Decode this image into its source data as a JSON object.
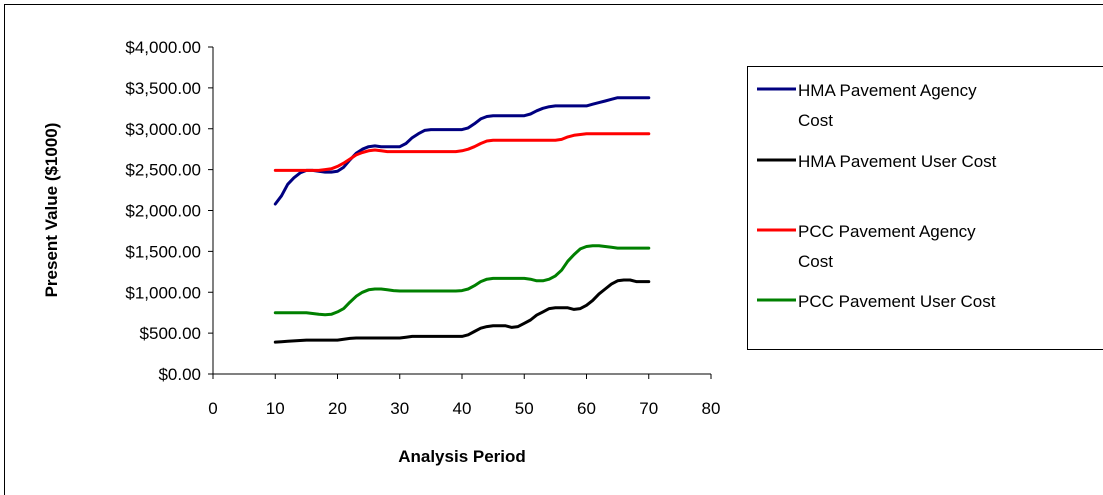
{
  "chart_data": {
    "type": "line",
    "title": "",
    "xlabel": "Analysis Period",
    "ylabel": "Present Value ($1000)",
    "xlim": [
      0,
      80
    ],
    "ylim": [
      0,
      4000
    ],
    "x_ticks": [
      "0",
      "10",
      "20",
      "30",
      "40",
      "50",
      "60",
      "70",
      "80"
    ],
    "y_ticks": [
      "$0.00",
      "$500.00",
      "$1,000.00",
      "$1,500.00",
      "$2,000.00",
      "$2,500.00",
      "$3,000.00",
      "$3,500.00",
      "$4,000.00"
    ],
    "grid": false,
    "legend_position": "right",
    "series": [
      {
        "name": "HMA Pavement Agency Cost",
        "legend_lines": [
          "HMA Pavement Agency",
          "Cost"
        ],
        "color": "#000080",
        "x": [
          10,
          11,
          12,
          13,
          14,
          15,
          16,
          17,
          18,
          19,
          20,
          21,
          22,
          23,
          24,
          25,
          26,
          27,
          28,
          29,
          30,
          31,
          32,
          33,
          34,
          35,
          36,
          37,
          38,
          39,
          40,
          41,
          42,
          43,
          44,
          45,
          46,
          47,
          48,
          49,
          50,
          51,
          52,
          53,
          54,
          55,
          56,
          57,
          58,
          59,
          60,
          61,
          62,
          63,
          64,
          65,
          66,
          67,
          68,
          69,
          70
        ],
        "values": [
          2080,
          2180,
          2320,
          2400,
          2460,
          2490,
          2490,
          2480,
          2470,
          2470,
          2480,
          2530,
          2620,
          2700,
          2750,
          2780,
          2790,
          2780,
          2780,
          2780,
          2780,
          2820,
          2890,
          2940,
          2980,
          2990,
          2990,
          2990,
          2990,
          2990,
          2990,
          3010,
          3060,
          3120,
          3150,
          3160,
          3160,
          3160,
          3160,
          3160,
          3160,
          3180,
          3220,
          3250,
          3270,
          3280,
          3280,
          3280,
          3280,
          3280,
          3280,
          3300,
          3320,
          3340,
          3360,
          3380,
          3380,
          3380,
          3380,
          3380,
          3380
        ]
      },
      {
        "name": "HMA Pavement User Cost",
        "legend_lines": [
          "HMA Pavement User Cost"
        ],
        "color": "#000000",
        "x": [
          10,
          11,
          12,
          13,
          14,
          15,
          16,
          17,
          18,
          19,
          20,
          21,
          22,
          23,
          24,
          25,
          26,
          27,
          28,
          29,
          30,
          31,
          32,
          33,
          34,
          35,
          36,
          37,
          38,
          39,
          40,
          41,
          42,
          43,
          44,
          45,
          46,
          47,
          48,
          49,
          50,
          51,
          52,
          53,
          54,
          55,
          56,
          57,
          58,
          59,
          60,
          61,
          62,
          63,
          64,
          65,
          66,
          67,
          68,
          69,
          70
        ],
        "values": [
          390,
          395,
          400,
          405,
          410,
          415,
          415,
          415,
          415,
          415,
          415,
          425,
          435,
          440,
          440,
          440,
          440,
          440,
          440,
          440,
          440,
          450,
          460,
          460,
          460,
          460,
          460,
          460,
          460,
          460,
          460,
          480,
          520,
          560,
          580,
          590,
          590,
          590,
          570,
          580,
          620,
          660,
          720,
          760,
          800,
          810,
          810,
          810,
          790,
          800,
          840,
          900,
          980,
          1040,
          1100,
          1140,
          1150,
          1150,
          1130,
          1130,
          1130
        ]
      },
      {
        "name": "PCC Pavement Agency Cost",
        "legend_lines": [
          "PCC Pavement Agency",
          "Cost"
        ],
        "color": "#ff0000",
        "x": [
          10,
          11,
          12,
          13,
          14,
          15,
          16,
          17,
          18,
          19,
          20,
          21,
          22,
          23,
          24,
          25,
          26,
          27,
          28,
          29,
          30,
          31,
          32,
          33,
          34,
          35,
          36,
          37,
          38,
          39,
          40,
          41,
          42,
          43,
          44,
          45,
          46,
          47,
          48,
          49,
          50,
          51,
          52,
          53,
          54,
          55,
          56,
          57,
          58,
          59,
          60,
          61,
          62,
          63,
          64,
          65,
          66,
          67,
          68,
          69,
          70
        ],
        "values": [
          2490,
          2490,
          2490,
          2490,
          2490,
          2490,
          2490,
          2490,
          2500,
          2510,
          2540,
          2580,
          2630,
          2680,
          2710,
          2730,
          2740,
          2730,
          2720,
          2720,
          2720,
          2720,
          2720,
          2720,
          2720,
          2720,
          2720,
          2720,
          2720,
          2720,
          2730,
          2750,
          2780,
          2820,
          2850,
          2860,
          2860,
          2860,
          2860,
          2860,
          2860,
          2860,
          2860,
          2860,
          2860,
          2860,
          2870,
          2900,
          2920,
          2930,
          2940,
          2940,
          2940,
          2940,
          2940,
          2940,
          2940,
          2940,
          2940,
          2940,
          2940
        ]
      },
      {
        "name": "PCC Pavement User Cost",
        "legend_lines": [
          "PCC Pavement User Cost"
        ],
        "color": "#008000",
        "x": [
          10,
          11,
          12,
          13,
          14,
          15,
          16,
          17,
          18,
          19,
          20,
          21,
          22,
          23,
          24,
          25,
          26,
          27,
          28,
          29,
          30,
          31,
          32,
          33,
          34,
          35,
          36,
          37,
          38,
          39,
          40,
          41,
          42,
          43,
          44,
          45,
          46,
          47,
          48,
          49,
          50,
          51,
          52,
          53,
          54,
          55,
          56,
          57,
          58,
          59,
          60,
          61,
          62,
          63,
          64,
          65,
          66,
          67,
          68,
          69,
          70
        ],
        "values": [
          750,
          750,
          750,
          750,
          750,
          750,
          740,
          730,
          725,
          730,
          760,
          800,
          880,
          950,
          1000,
          1030,
          1040,
          1040,
          1030,
          1020,
          1015,
          1015,
          1015,
          1015,
          1015,
          1015,
          1015,
          1015,
          1015,
          1015,
          1020,
          1040,
          1080,
          1130,
          1160,
          1170,
          1170,
          1170,
          1170,
          1170,
          1170,
          1160,
          1140,
          1140,
          1160,
          1200,
          1270,
          1380,
          1460,
          1530,
          1560,
          1570,
          1570,
          1560,
          1550,
          1540,
          1540,
          1540,
          1540,
          1540,
          1540
        ]
      }
    ]
  }
}
